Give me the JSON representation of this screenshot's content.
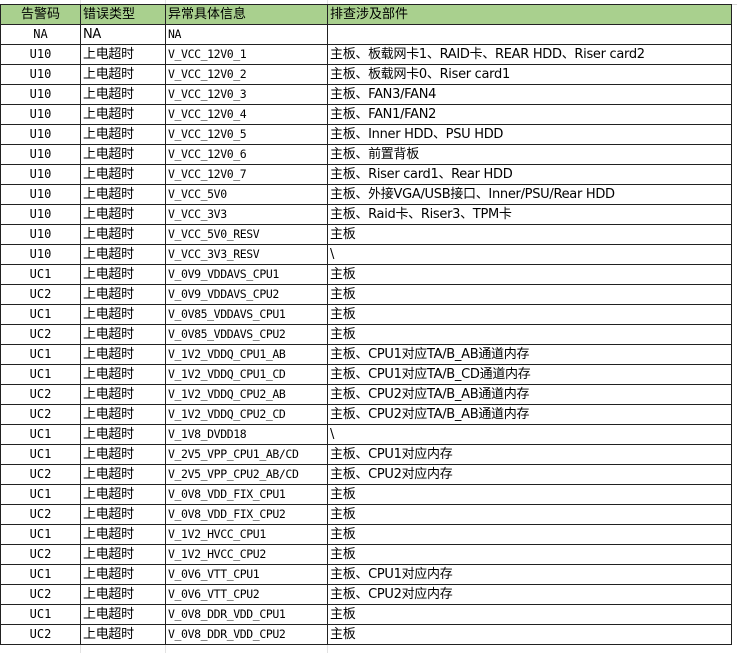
{
  "table": {
    "headers": [
      "告警码",
      "错误类型",
      "异常具体信息",
      "排查涉及部件"
    ],
    "rows": [
      [
        "NA",
        "NA",
        "NA",
        ""
      ],
      [
        "U10",
        "上电超时",
        "V_VCC_12V0_1",
        "主板、板载网卡1、RAID卡、REAR HDD、Riser card2"
      ],
      [
        "U10",
        "上电超时",
        "V_VCC_12V0_2",
        "主板、板载网卡0、Riser card1"
      ],
      [
        "U10",
        "上电超时",
        "V_VCC_12V0_3",
        "主板、FAN3/FAN4"
      ],
      [
        "U10",
        "上电超时",
        "V_VCC_12V0_4",
        "主板、FAN1/FAN2"
      ],
      [
        "U10",
        "上电超时",
        "V_VCC_12V0_5",
        "主板、Inner HDD、PSU HDD"
      ],
      [
        "U10",
        "上电超时",
        "V_VCC_12V0_6",
        "主板、前置背板"
      ],
      [
        "U10",
        "上电超时",
        "V_VCC_12V0_7",
        "主板、Riser card1、Rear HDD"
      ],
      [
        "U10",
        "上电超时",
        "V_VCC_5V0",
        "主板、外接VGA/USB接口、Inner/PSU/Rear HDD"
      ],
      [
        "U10",
        "上电超时",
        "V_VCC_3V3",
        "主板、Raid卡、Riser3、TPM卡"
      ],
      [
        "U10",
        "上电超时",
        "V_VCC_5V0_RESV",
        "主板"
      ],
      [
        "U10",
        "上电超时",
        "V_VCC_3V3_RESV",
        "\\"
      ],
      [
        "UC1",
        "上电超时",
        "V_0V9_VDDAVS_CPU1",
        "主板"
      ],
      [
        "UC2",
        "上电超时",
        "V_0V9_VDDAVS_CPU2",
        "主板"
      ],
      [
        "UC1",
        "上电超时",
        "V_0V85_VDDAVS_CPU1",
        "主板"
      ],
      [
        "UC2",
        "上电超时",
        "V_0V85_VDDAVS_CPU2",
        "主板"
      ],
      [
        "UC1",
        "上电超时",
        "V_1V2_VDDQ_CPU1_AB",
        "主板、CPU1对应TA/B_AB通道内存"
      ],
      [
        "UC1",
        "上电超时",
        "V_1V2_VDDQ_CPU1_CD",
        "主板、CPU1对应TA/B_CD通道内存"
      ],
      [
        "UC2",
        "上电超时",
        "V_1V2_VDDQ_CPU2_AB",
        "主板、CPU2对应TA/B_AB通道内存"
      ],
      [
        "UC2",
        "上电超时",
        "V_1V2_VDDQ_CPU2_CD",
        "主板、CPU2对应TA/B_AB通道内存"
      ],
      [
        "UC1",
        "上电超时",
        "V_1V8_DVDD18",
        "\\"
      ],
      [
        "UC1",
        "上电超时",
        "V_2V5_VPP_CPU1_AB/CD",
        "主板、CPU1对应内存"
      ],
      [
        "UC2",
        "上电超时",
        "V_2V5_VPP_CPU2_AB/CD",
        "主板、CPU2对应内存"
      ],
      [
        "UC1",
        "上电超时",
        "V_0V8_VDD_FIX_CPU1",
        "主板"
      ],
      [
        "UC2",
        "上电超时",
        "V_0V8_VDD_FIX_CPU2",
        "主板"
      ],
      [
        "UC1",
        "上电超时",
        "V_1V2_HVCC_CPU1",
        "主板"
      ],
      [
        "UC2",
        "上电超时",
        "V_1V2_HVCC_CPU2",
        "主板"
      ],
      [
        "UC1",
        "上电超时",
        "V_0V6_VTT_CPU1",
        "主板、CPU1对应内存"
      ],
      [
        "UC2",
        "上电超时",
        "V_0V6_VTT_CPU2",
        "主板、CPU2对应内存"
      ],
      [
        "UC1",
        "上电超时",
        "V_0V8_DDR_VDD_CPU1",
        "主板"
      ],
      [
        "UC2",
        "上电超时",
        "V_0V8_DDR_VDD_CPU2",
        "主板"
      ]
    ]
  },
  "colors": {
    "header_bg": "#a9d08e",
    "border": "#222222"
  }
}
